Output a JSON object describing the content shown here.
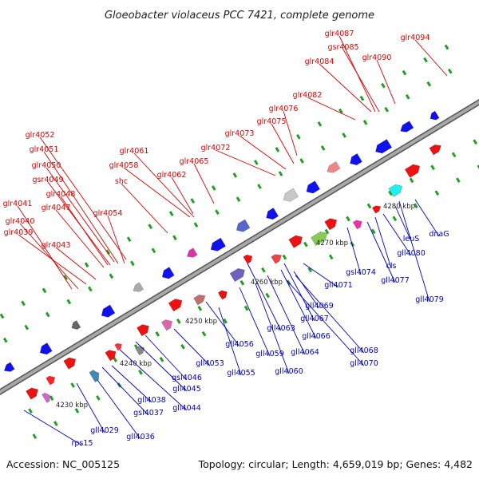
{
  "map": {
    "title": "Gloeobacter violaceus PCC 7421, complete genome",
    "accession": "Accession: NC_005125",
    "summary": "Topology: circular; Length: 4,659,019 bp; Genes: 4,482",
    "colors": {
      "forward_label": "#e00000",
      "reverse_label": "#0000cc",
      "forward_arrow": "#ee1111",
      "reverse_arrow": "#1111ee",
      "backbone": "#9a9a9a",
      "tick_dot": "#22a022"
    },
    "scale_labels": [
      "4230 kbp",
      "4240 kbp",
      "4250 kbp",
      "4260 kbp",
      "4270 kbp",
      "4280 kbp"
    ],
    "forward_genes": [
      "glr4094",
      "glr4087",
      "gsr4085",
      "glr4090",
      "glr4084",
      "glr4082",
      "glr4076",
      "glr4075",
      "glr4073",
      "glr4072",
      "glr4065",
      "glr4061",
      "glr4058",
      "glr4062",
      "shc",
      "glr4054",
      "glr4052",
      "glr4051",
      "glr4050",
      "gsr4049",
      "glr4048",
      "glr4047",
      "glr4041",
      "glr4040",
      "glr4039",
      "glr4043"
    ],
    "reverse_genes": [
      "dnaG",
      "leuS",
      "gll4080",
      "cls",
      "gll4077",
      "gll4079",
      "gsl4074",
      "gll4071",
      "gll4069",
      "gll4067",
      "gll4066",
      "gll4068",
      "gll4070",
      "gll4063",
      "gll4064",
      "gll4059",
      "gll4060",
      "gll4056",
      "gll4055",
      "gll4053",
      "gsl4046",
      "gll4045",
      "gll4044",
      "gll4038",
      "gsl4037",
      "gll4029",
      "gll4036",
      "rps15"
    ]
  }
}
